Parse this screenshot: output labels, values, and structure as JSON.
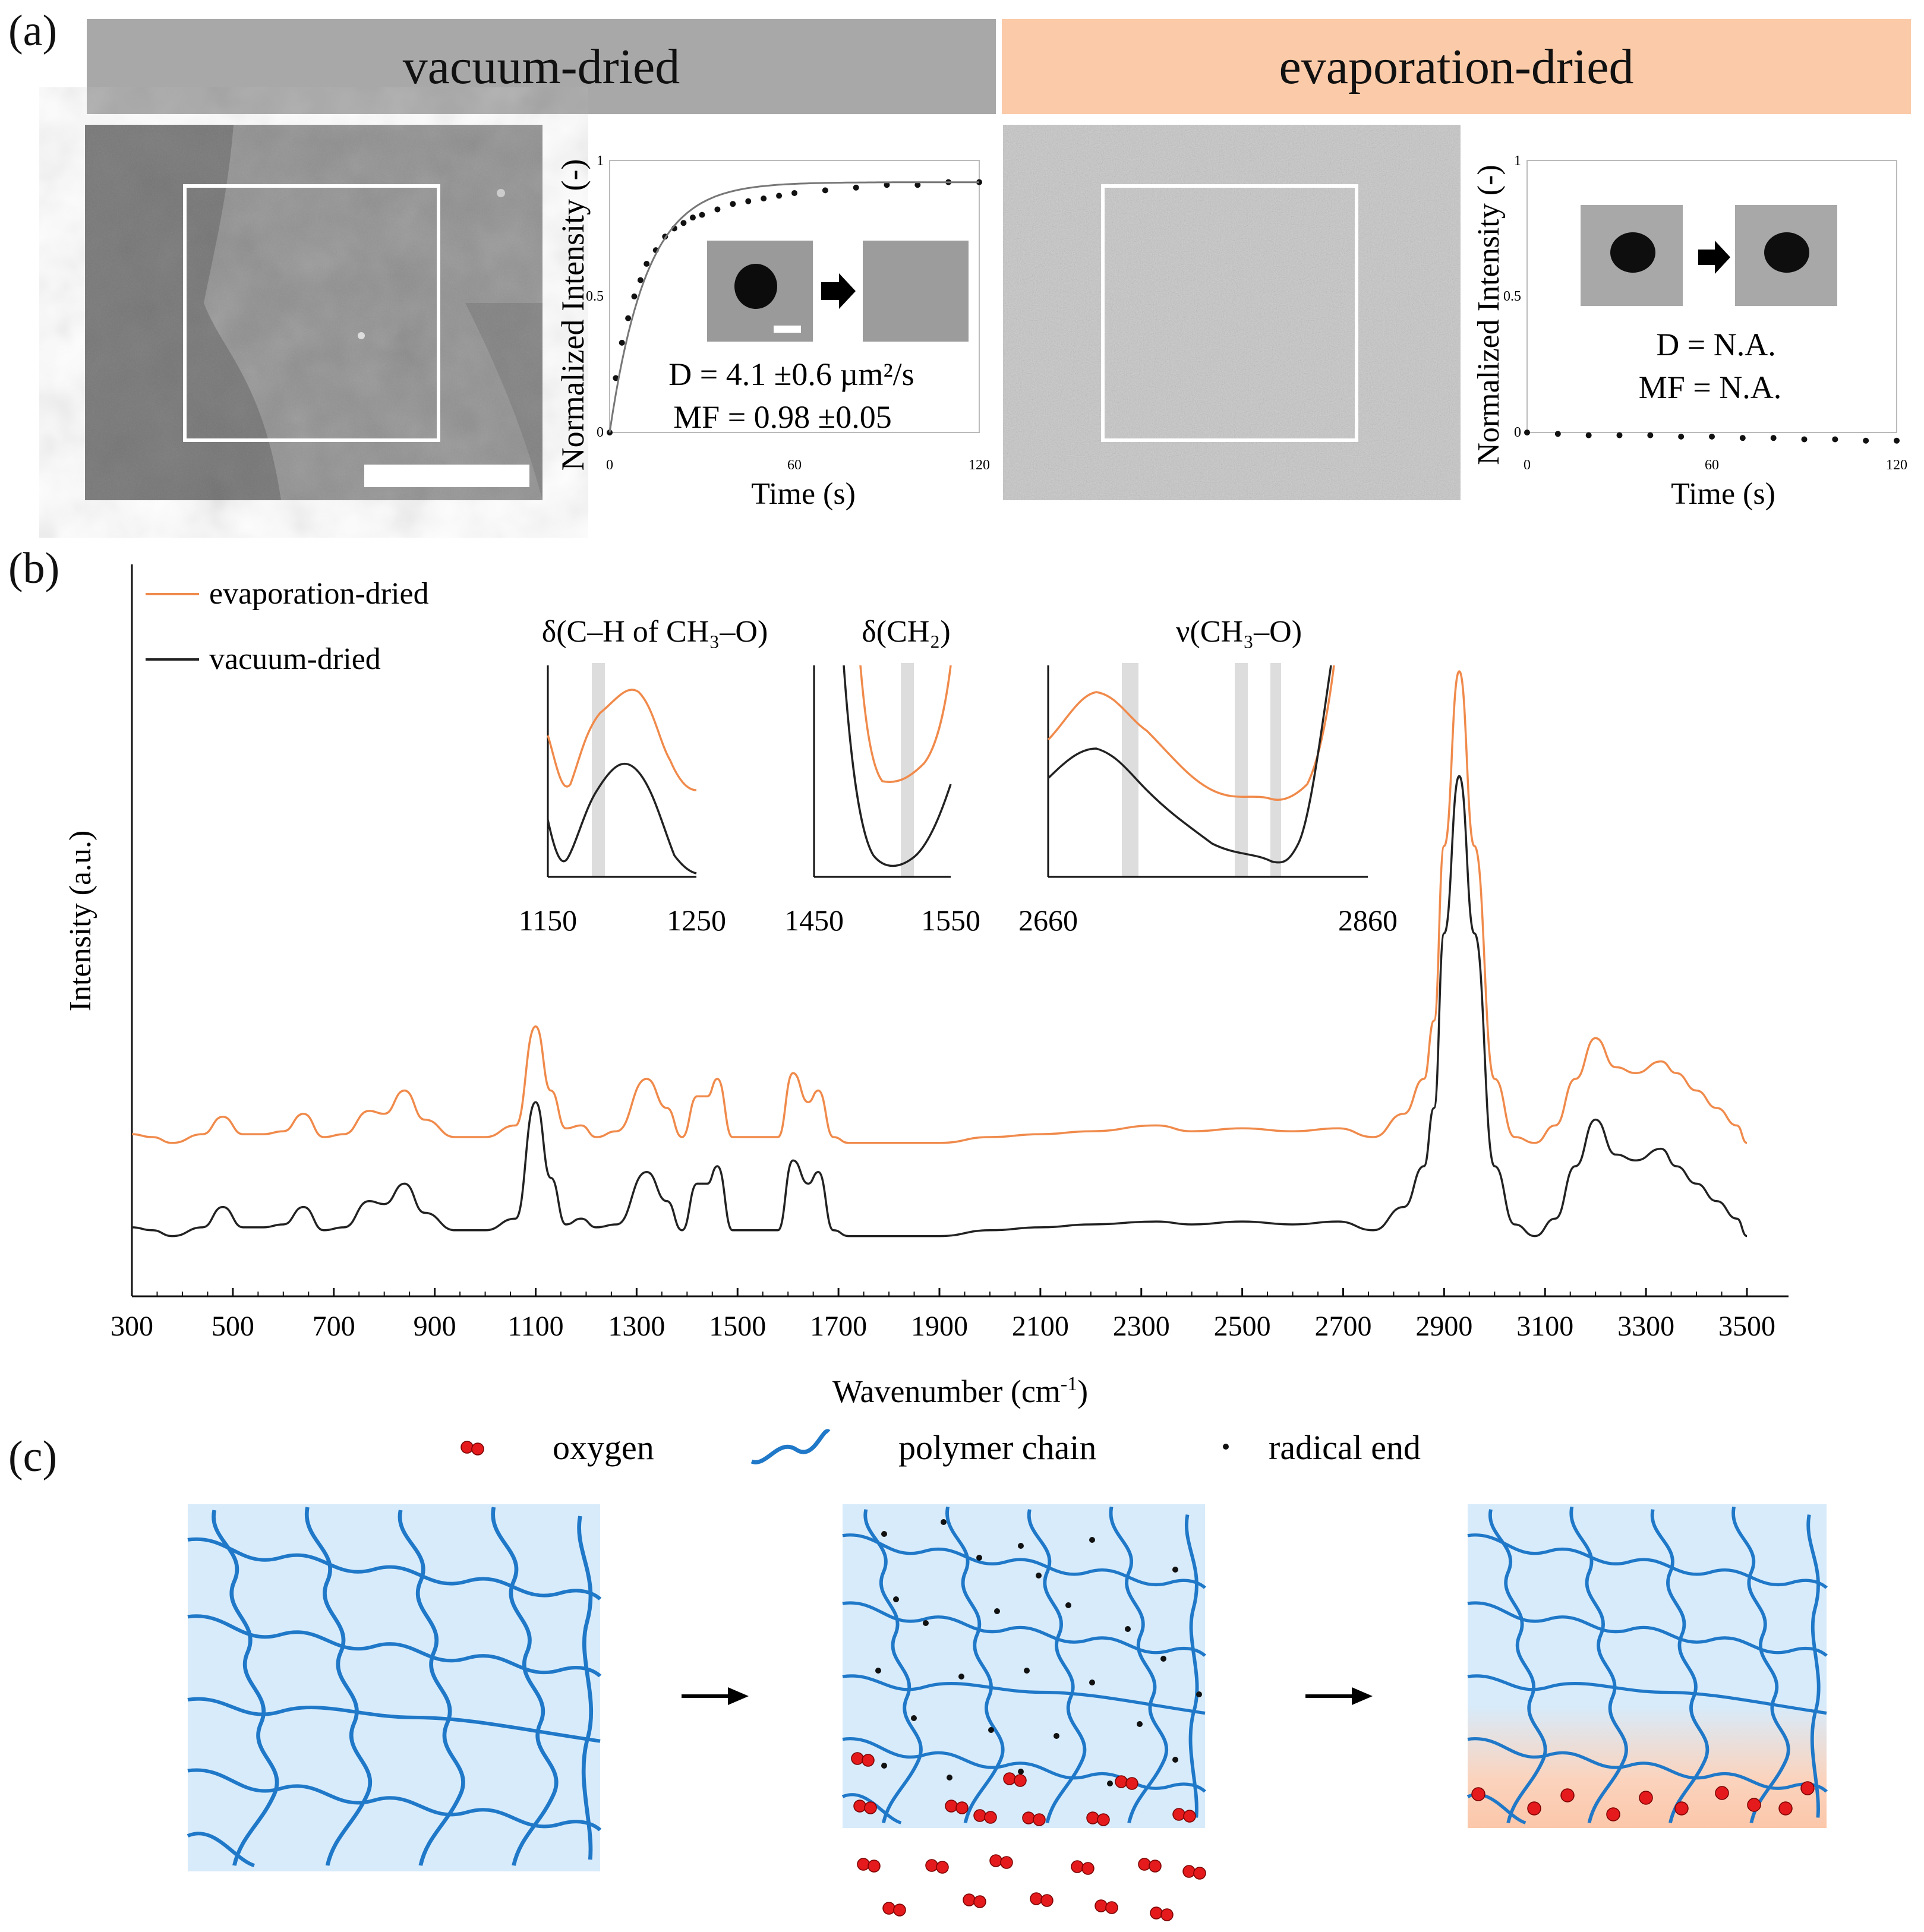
{
  "panel_a": {
    "letter": "(a)",
    "vacuum": {
      "banner": "vacuum-dried",
      "banner_color": "#a8a8a8",
      "plot": {
        "ylabel": "Normalized Intensity (-)",
        "xlabel": "Time (s)",
        "yticks": [
          "0",
          "0.5",
          "1"
        ],
        "xticks": [
          "0",
          "60",
          "120"
        ],
        "D": "D = 4.1 ±0.6 µm²/s",
        "MF": "MF = 0.98 ±0.05"
      }
    },
    "evaporation": {
      "banner": "evaporation-dried",
      "banner_color": "#fbcaa8",
      "plot": {
        "ylabel": "Normalized Intensity (-)",
        "xlabel": "Time (s)",
        "yticks": [
          "0",
          "0.5",
          "1"
        ],
        "xticks": [
          "0",
          "60",
          "120"
        ],
        "D": "D = N.A.",
        "MF": "MF = N.A."
      }
    }
  },
  "panel_b": {
    "letter": "(b)",
    "legend": [
      "evaporation-dried",
      "vacuum-dried"
    ],
    "insets": [
      {
        "title": "δ(C–H of CH₃–O)",
        "xmin": "1150",
        "xmax": "1250"
      },
      {
        "title": "δ(CH₂)",
        "xmin": "1450",
        "xmax": "1550"
      },
      {
        "title": "ν(CH₃–O)",
        "xmin": "2660",
        "xmax": "2860"
      }
    ]
  },
  "panel_c": {
    "letter": "(c)",
    "legend": {
      "oxygen": "oxygen",
      "chain": "polymer chain",
      "radical": "radical end"
    },
    "colors": {
      "chain": "#1f78c8",
      "gel": "#d7ebfb",
      "oxygen": "#e41a1c",
      "oxidized": "#fbd3bd"
    }
  },
  "chart_data": [
    {
      "type": "scatter",
      "title": "",
      "xlabel": "Time (s)",
      "ylabel": "Normalized Intensity (-)",
      "xlim": [
        0,
        120
      ],
      "ylim": [
        0,
        1
      ],
      "series": [
        {
          "x": [
            0,
            2,
            4,
            6,
            8,
            10,
            12,
            15,
            18,
            21,
            24,
            27,
            30,
            35,
            40,
            45,
            50,
            55,
            60,
            70,
            80,
            90,
            100,
            110,
            120
          ],
          "values": [
            0.0,
            0.2,
            0.33,
            0.42,
            0.5,
            0.56,
            0.62,
            0.67,
            0.72,
            0.75,
            0.77,
            0.79,
            0.8,
            0.82,
            0.84,
            0.85,
            0.86,
            0.87,
            0.88,
            0.89,
            0.9,
            0.91,
            0.91,
            0.92,
            0.92
          ]
        }
      ]
    },
    {
      "type": "scatter",
      "title": "",
      "xlabel": "Time (s)",
      "ylabel": "Normalized Intensity (-)",
      "xlim": [
        0,
        120
      ],
      "ylim": [
        0,
        1
      ],
      "series": [
        {
          "x": [
            0,
            10,
            20,
            30,
            40,
            50,
            60,
            70,
            80,
            90,
            100,
            110,
            120
          ],
          "values": [
            0.0,
            -0.005,
            -0.01,
            -0.01,
            -0.01,
            -0.015,
            -0.015,
            -0.02,
            -0.02,
            -0.025,
            -0.025,
            -0.03,
            -0.03
          ]
        }
      ]
    },
    {
      "type": "line",
      "title": "",
      "xlabel": "Wavenumber (cm⁻¹)",
      "ylabel": "Intensity (a.u.)",
      "xlim": [
        300,
        3500
      ],
      "xticks": [
        300,
        500,
        700,
        900,
        1100,
        1300,
        1500,
        1700,
        1900,
        2100,
        2300,
        2500,
        2700,
        2900,
        3100,
        3300,
        3500
      ],
      "legend_position": "top-left",
      "series": [
        {
          "name": "evaporation-dried",
          "color": "#f08a4b",
          "x": [
            300,
            340,
            380,
            440,
            480,
            520,
            560,
            600,
            640,
            680,
            720,
            770,
            800,
            840,
            880,
            940,
            1000,
            1060,
            1100,
            1130,
            1160,
            1190,
            1220,
            1260,
            1320,
            1360,
            1390,
            1420,
            1440,
            1460,
            1490,
            1530,
            1580,
            1610,
            1640,
            1660,
            1690,
            1720,
            1800,
            1900,
            2000,
            2100,
            2200,
            2330,
            2400,
            2500,
            2600,
            2690,
            2760,
            2820,
            2860,
            2880,
            2900,
            2930,
            2960,
            3000,
            3040,
            3080,
            3120,
            3160,
            3200,
            3240,
            3280,
            3330,
            3360,
            3400,
            3440,
            3480,
            3500
          ],
          "values": [
            0.205,
            0.2,
            0.19,
            0.205,
            0.235,
            0.205,
            0.205,
            0.21,
            0.24,
            0.2,
            0.205,
            0.245,
            0.24,
            0.28,
            0.23,
            0.2,
            0.2,
            0.22,
            0.39,
            0.28,
            0.215,
            0.22,
            0.2,
            0.21,
            0.3,
            0.25,
            0.2,
            0.27,
            0.27,
            0.3,
            0.2,
            0.2,
            0.2,
            0.31,
            0.26,
            0.28,
            0.2,
            0.19,
            0.19,
            0.19,
            0.2,
            0.205,
            0.21,
            0.22,
            0.21,
            0.215,
            0.21,
            0.215,
            0.2,
            0.24,
            0.3,
            0.4,
            0.7,
            1.0,
            0.7,
            0.3,
            0.2,
            0.19,
            0.22,
            0.3,
            0.37,
            0.32,
            0.31,
            0.33,
            0.31,
            0.28,
            0.25,
            0.22,
            0.19
          ]
        },
        {
          "name": "vacuum-dried",
          "color": "#222222",
          "x": [
            300,
            340,
            380,
            440,
            480,
            520,
            560,
            600,
            640,
            680,
            720,
            770,
            800,
            840,
            880,
            940,
            1000,
            1060,
            1100,
            1130,
            1160,
            1190,
            1220,
            1260,
            1320,
            1360,
            1390,
            1420,
            1440,
            1460,
            1490,
            1530,
            1580,
            1610,
            1640,
            1660,
            1690,
            1720,
            1800,
            1900,
            2000,
            2100,
            2200,
            2330,
            2400,
            2500,
            2600,
            2690,
            2760,
            2820,
            2860,
            2880,
            2900,
            2930,
            2960,
            3000,
            3040,
            3080,
            3120,
            3160,
            3200,
            3240,
            3280,
            3330,
            3360,
            3400,
            3440,
            3480,
            3500
          ],
          "values": [
            0.045,
            0.04,
            0.03,
            0.045,
            0.08,
            0.045,
            0.045,
            0.05,
            0.08,
            0.04,
            0.045,
            0.09,
            0.085,
            0.12,
            0.07,
            0.04,
            0.04,
            0.06,
            0.26,
            0.13,
            0.05,
            0.06,
            0.045,
            0.05,
            0.14,
            0.09,
            0.04,
            0.12,
            0.12,
            0.15,
            0.04,
            0.04,
            0.04,
            0.16,
            0.12,
            0.14,
            0.04,
            0.03,
            0.03,
            0.03,
            0.04,
            0.045,
            0.05,
            0.055,
            0.05,
            0.055,
            0.05,
            0.055,
            0.04,
            0.08,
            0.15,
            0.25,
            0.55,
            0.82,
            0.55,
            0.15,
            0.05,
            0.03,
            0.06,
            0.15,
            0.23,
            0.17,
            0.16,
            0.18,
            0.15,
            0.12,
            0.09,
            0.06,
            0.03
          ]
        }
      ]
    }
  ]
}
